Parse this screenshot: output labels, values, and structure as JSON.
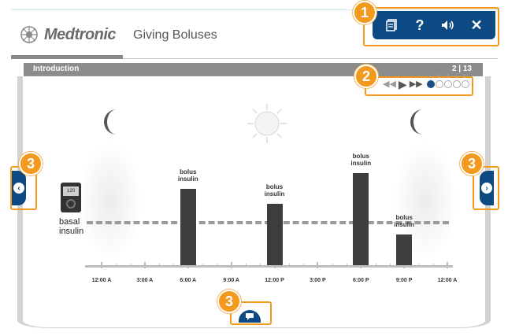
{
  "header": {
    "brand": "Medtronic",
    "title": "Giving Boluses"
  },
  "toolbar": {
    "icons": [
      "document-icon",
      "help-icon",
      "audio-icon",
      "close-icon"
    ],
    "help_label": "?",
    "close_label": "✕"
  },
  "section": {
    "title": "Introduction",
    "page_counter": "2 | 13"
  },
  "player": {
    "dots": [
      "1",
      "2",
      "3",
      "4",
      "5"
    ],
    "active_dot": 1
  },
  "callouts": {
    "toolbar": "1",
    "player": "2",
    "nav_left": "3",
    "nav_right": "3",
    "notes": "3"
  },
  "pump": {
    "screen_text": "120",
    "label_line1": "basal",
    "label_line2": "insulin"
  },
  "chart_data": {
    "type": "bar",
    "x_ticks": [
      "12:00 A",
      "3:00 A",
      "6:00 A",
      "9:00 A",
      "12:00 P",
      "3:00 P",
      "6:00 P",
      "9:00 P",
      "12:00 A"
    ],
    "series": [
      {
        "name": "bolus insulin",
        "points": [
          {
            "time": "6:00 A",
            "value": 0.75,
            "label_line1": "bolus",
            "label_line2": "insulin"
          },
          {
            "time": "12:00 P",
            "value": 0.6,
            "label_line1": "bolus",
            "label_line2": "insulin"
          },
          {
            "time": "6:00 P",
            "value": 0.9,
            "label_line1": "bolus",
            "label_line2": "insulin"
          },
          {
            "time": "9:00 P",
            "value": 0.3,
            "label_line1": "bolus",
            "label_line2": "insulin"
          }
        ]
      }
    ],
    "basal_level": 0.4,
    "colors": {
      "bar": "#3d3d3d",
      "basal_line": "#9a9a9a",
      "brand_blue": "#0d4a83",
      "callout_orange": "#f39a1e"
    }
  }
}
